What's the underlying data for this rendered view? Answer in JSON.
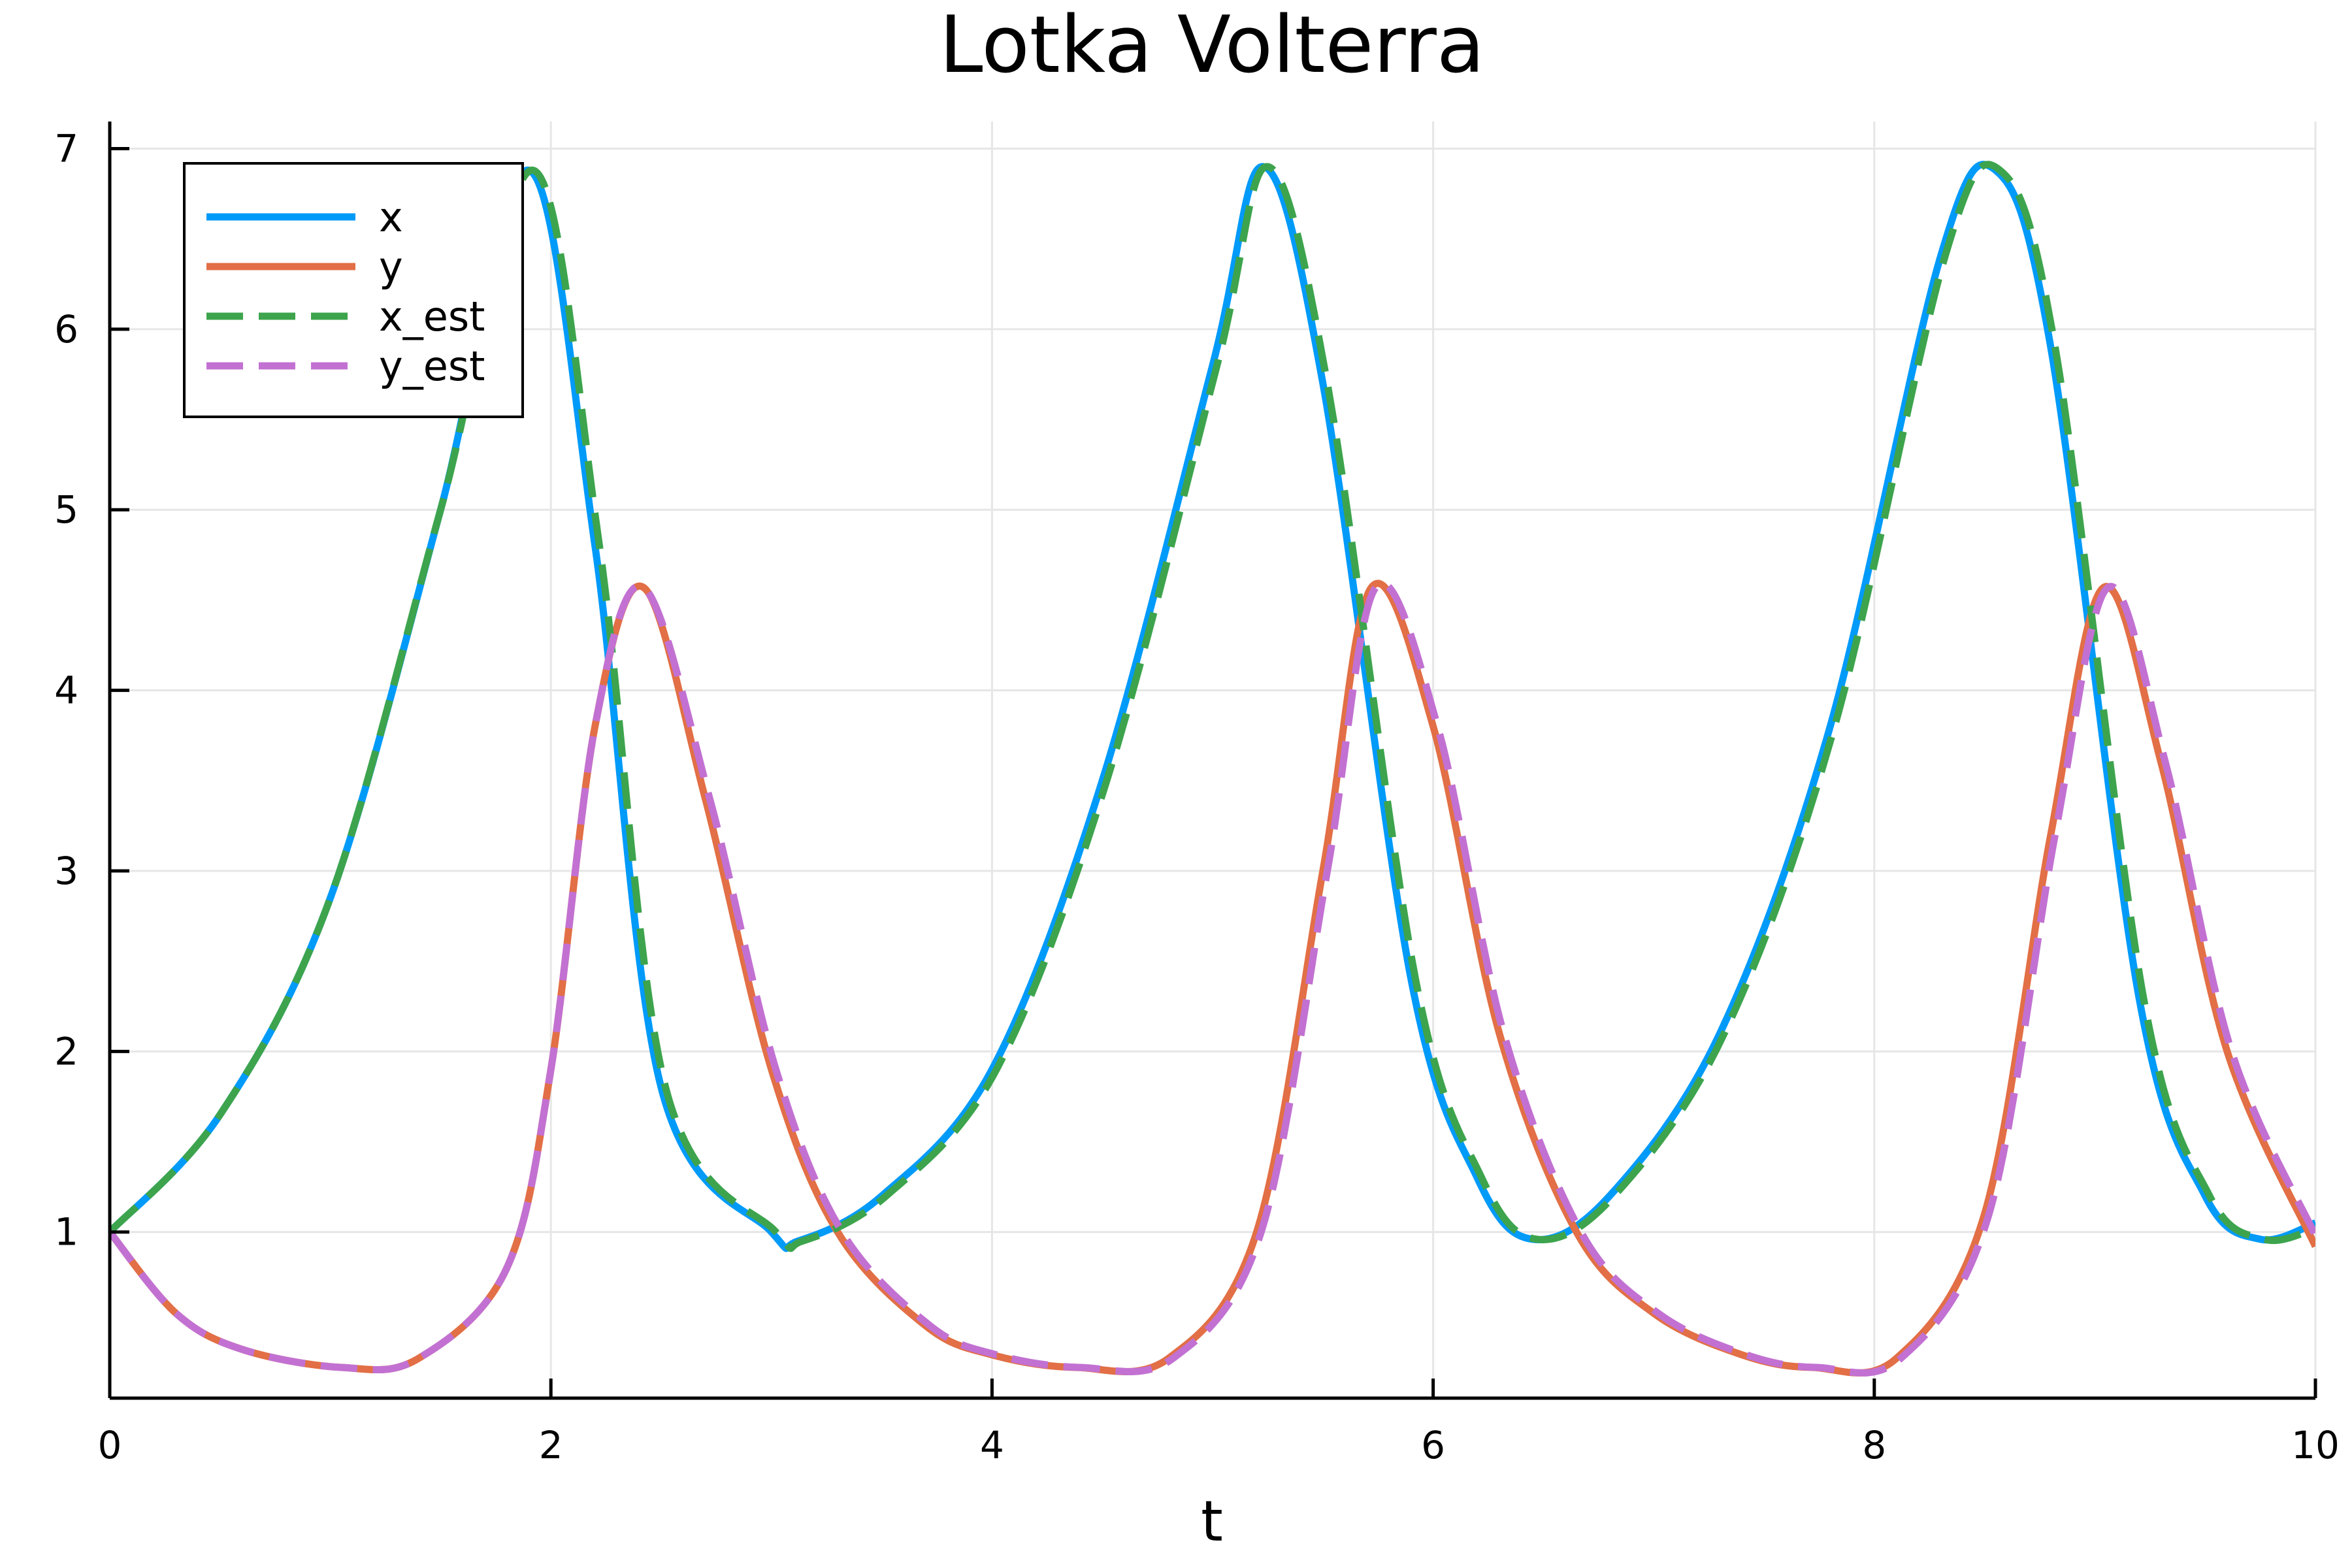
{
  "chart_data": {
    "type": "line",
    "title": "Lotka Volterra",
    "xlabel": "t",
    "ylabel": "",
    "xlim": [
      0,
      10
    ],
    "ylim": [
      0.08,
      7.15
    ],
    "xticks": [
      0,
      2,
      4,
      6,
      8,
      10
    ],
    "yticks": [
      1,
      2,
      3,
      4,
      5,
      6,
      7
    ],
    "grid": true,
    "legend_position": "top-left",
    "series": [
      {
        "name": "x",
        "color": "#009af9",
        "dash": "solid",
        "x": [
          0,
          0.5,
          1.0,
          1.5,
          1.9,
          2.2,
          2.5,
          3.0,
          3.12,
          3.5,
          4.0,
          4.5,
          5.0,
          5.23,
          5.5,
          5.9,
          6.2,
          6.45,
          6.8,
          7.3,
          7.8,
          8.3,
          8.55,
          8.8,
          9.2,
          9.5,
          9.75,
          10.0
        ],
        "y": [
          1.0,
          1.65,
          2.85,
          5.0,
          6.88,
          4.8,
          1.8,
          1.0,
          0.95,
          1.2,
          1.9,
          3.5,
          5.8,
          6.9,
          5.7,
          2.4,
          1.3,
          0.96,
          1.2,
          2.1,
          3.8,
          6.4,
          6.88,
          5.9,
          2.3,
          1.2,
          0.96,
          1.05
        ]
      },
      {
        "name": "y",
        "color": "#e26f46",
        "dash": "solid",
        "x": [
          0,
          0.3,
          0.6,
          1.05,
          1.4,
          1.8,
          2.0,
          2.2,
          2.42,
          2.7,
          3.0,
          3.3,
          3.7,
          4.0,
          4.38,
          4.8,
          5.2,
          5.5,
          5.72,
          6.0,
          6.3,
          6.65,
          7.0,
          7.4,
          7.72,
          8.1,
          8.5,
          8.8,
          9.04,
          9.3,
          9.6,
          10.0
        ],
        "y": [
          1.0,
          0.55,
          0.35,
          0.25,
          0.3,
          0.8,
          1.9,
          3.8,
          4.57,
          3.4,
          1.9,
          1.0,
          0.48,
          0.32,
          0.25,
          0.3,
          1.0,
          3.0,
          4.57,
          3.8,
          2.1,
          1.0,
          0.55,
          0.32,
          0.25,
          0.3,
          1.1,
          3.2,
          4.57,
          3.6,
          2.0,
          0.92
        ]
      },
      {
        "name": "x_est",
        "color": "#3da44d",
        "dash": "dashed",
        "x": [
          0,
          0.5,
          1.0,
          1.5,
          1.92,
          2.22,
          2.52,
          3.02,
          3.14,
          3.52,
          4.02,
          4.52,
          5.02,
          5.25,
          5.52,
          5.92,
          6.22,
          6.47,
          6.82,
          7.32,
          7.82,
          8.32,
          8.57,
          8.82,
          9.22,
          9.52,
          9.77,
          10.0
        ],
        "y": [
          1.0,
          1.65,
          2.85,
          5.0,
          6.88,
          4.8,
          1.8,
          1.0,
          0.95,
          1.2,
          1.9,
          3.5,
          5.8,
          6.9,
          5.7,
          2.4,
          1.3,
          0.96,
          1.2,
          2.1,
          3.8,
          6.4,
          6.88,
          5.9,
          2.3,
          1.2,
          0.96,
          1.02
        ]
      },
      {
        "name": "y_est",
        "color": "#c271d2",
        "dash": "dashed",
        "x": [
          0,
          0.3,
          0.6,
          1.05,
          1.4,
          1.8,
          2.0,
          2.2,
          2.42,
          2.72,
          3.02,
          3.32,
          3.72,
          4.02,
          4.4,
          4.82,
          5.22,
          5.52,
          5.74,
          6.02,
          6.32,
          6.67,
          7.02,
          7.42,
          7.74,
          8.12,
          8.52,
          8.82,
          9.06,
          9.32,
          9.62,
          10.0
        ],
        "y": [
          1.0,
          0.55,
          0.35,
          0.25,
          0.3,
          0.8,
          1.9,
          3.8,
          4.57,
          3.4,
          1.9,
          1.0,
          0.48,
          0.32,
          0.25,
          0.3,
          1.0,
          3.0,
          4.57,
          3.8,
          2.1,
          1.0,
          0.55,
          0.32,
          0.25,
          0.3,
          1.1,
          3.2,
          4.57,
          3.6,
          2.0,
          0.98
        ]
      }
    ]
  }
}
